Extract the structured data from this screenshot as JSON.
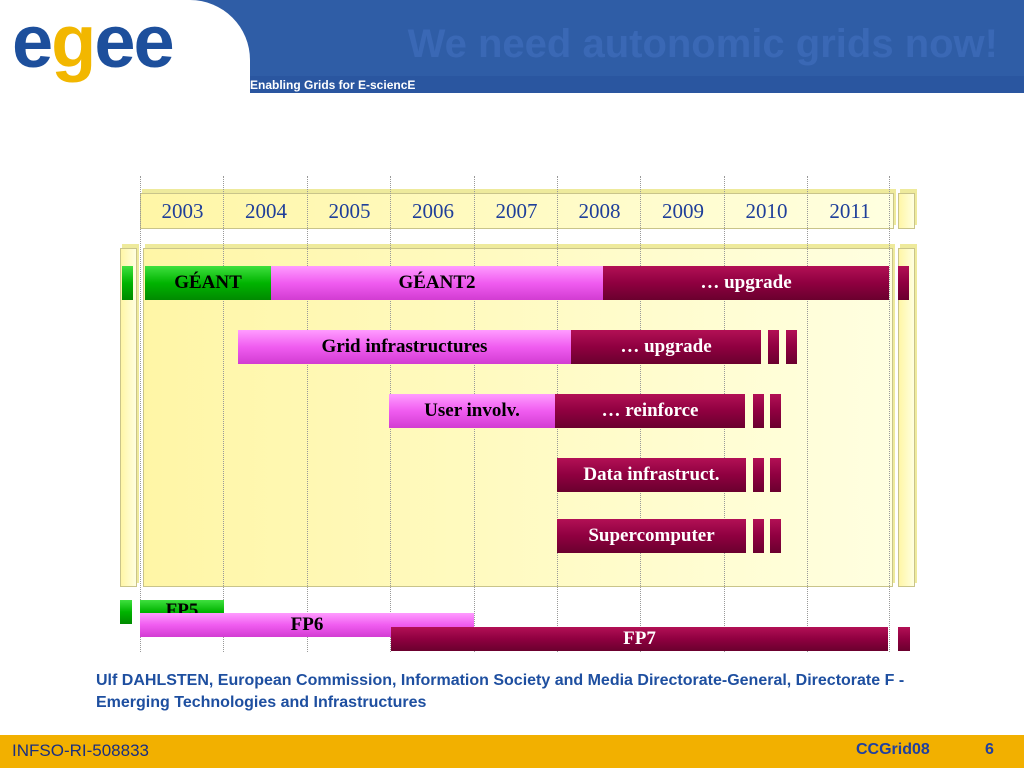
{
  "header": {
    "logo_parts": [
      "e",
      "g",
      "ee"
    ],
    "tagline": "Enabling Grids for E-sciencE",
    "title": "We need autonomic grids now!"
  },
  "timeline": {
    "years": [
      "2003",
      "2004",
      "2005",
      "2006",
      "2007",
      "2008",
      "2009",
      "2010",
      "2011"
    ],
    "rows": [
      {
        "segments": [
          "GÉANT",
          "GÉANT2",
          "… upgrade"
        ]
      },
      {
        "segments": [
          "Grid infrastructures",
          "… upgrade"
        ]
      },
      {
        "segments": [
          "User involv.",
          "… reinforce"
        ]
      },
      {
        "segments": [
          "Data infrastruct."
        ]
      },
      {
        "segments": [
          "Supercomputer"
        ]
      }
    ],
    "programmes": [
      "FP5",
      "FP6",
      "FP7"
    ],
    "colors": {
      "green": "#00b400",
      "pink": "#f05cf0",
      "wine": "#8f0040"
    }
  },
  "attribution": "Ulf DAHLSTEN, European Commission, Information Society and Media Directorate-General, Directorate F - Emerging Technologies and Infrastructures",
  "footer": {
    "left": "INFSO-RI-508833",
    "event": "CCGrid08",
    "page": "6"
  }
}
